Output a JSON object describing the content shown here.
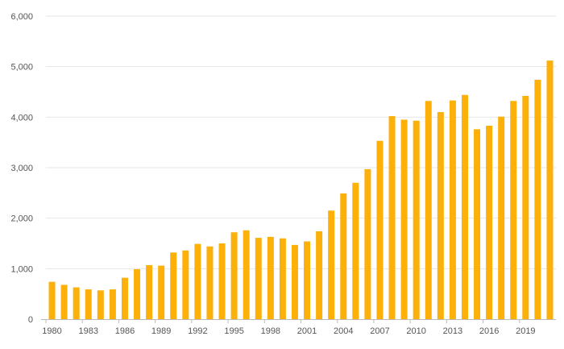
{
  "chart_data": {
    "type": "bar",
    "title": "",
    "xlabel": "",
    "ylabel": "",
    "ylim": [
      0,
      6000
    ],
    "grid": true,
    "legend": "none",
    "bar_color": "#FBB00A",
    "grid_color": "#E6E6E6",
    "axis_color": "#BBBBBB",
    "yticks": [
      "0",
      "1,000",
      "2,000",
      "3,000",
      "4,000",
      "5,000",
      "6,000"
    ],
    "ytick_values": [
      0,
      1000,
      2000,
      3000,
      4000,
      5000,
      6000
    ],
    "xtick_labels": [
      "1980",
      "1983",
      "1986",
      "1989",
      "1992",
      "1995",
      "1998",
      "2001",
      "2004",
      "2007",
      "2010",
      "2013",
      "2016",
      "2019"
    ],
    "categories": [
      1980,
      1981,
      1982,
      1983,
      1984,
      1985,
      1986,
      1987,
      1988,
      1989,
      1990,
      1991,
      1992,
      1993,
      1994,
      1995,
      1996,
      1997,
      1998,
      1999,
      2000,
      2001,
      2002,
      2003,
      2004,
      2005,
      2006,
      2007,
      2008,
      2009,
      2010,
      2011,
      2012,
      2013,
      2014,
      2015,
      2016,
      2017,
      2018,
      2019,
      2020,
      2021
    ],
    "values": [
      740,
      680,
      630,
      590,
      570,
      590,
      820,
      990,
      1070,
      1060,
      1320,
      1360,
      1490,
      1440,
      1500,
      1720,
      1760,
      1610,
      1630,
      1600,
      1470,
      1540,
      1740,
      2150,
      2490,
      2700,
      2970,
      3530,
      4020,
      3950,
      3930,
      4320,
      4100,
      4330,
      4440,
      3760,
      3830,
      4010,
      4320,
      4420,
      4740,
      5120
    ]
  }
}
